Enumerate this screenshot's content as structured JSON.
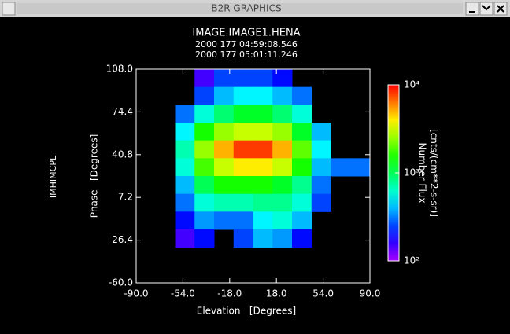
{
  "window": {
    "title": "B2R GRAPHICS"
  },
  "chart_data": {
    "type": "heatmap",
    "title": "IMAGE.IMAGE1.HENA",
    "subtitle": [
      "2000 177 04:59:08.546",
      "2000 177 05:01:11.246"
    ],
    "side_label": "IMHIMCPL",
    "x_label": "Elevation   [Degrees]",
    "y_label": "Phase   [Degrees]",
    "colorbar_title": [
      "Number Flux",
      "[cnts/(cm**2-s-sr)]"
    ],
    "xlim": [
      -90,
      90
    ],
    "ylim": [
      -60,
      108
    ],
    "xticks": [
      {
        "value": -90,
        "label": "-90.0"
      },
      {
        "value": -54,
        "label": "-54.0"
      },
      {
        "value": -18,
        "label": "-18.0"
      },
      {
        "value": 18,
        "label": "18.0"
      },
      {
        "value": 54,
        "label": "54.0"
      },
      {
        "value": 90,
        "label": "90.0"
      }
    ],
    "yticks": [
      {
        "value": -60,
        "label": "-60.0"
      },
      {
        "value": -26.4,
        "label": "-26.4"
      },
      {
        "value": 7.2,
        "label": "7.2"
      },
      {
        "value": 40.8,
        "label": "40.8"
      },
      {
        "value": 74.4,
        "label": "74.4"
      },
      {
        "value": 108,
        "label": "108.0"
      }
    ],
    "x": [
      -82.5,
      -67.5,
      -52.5,
      -37.5,
      -22.5,
      -7.5,
      7.5,
      22.5,
      37.5,
      52.5,
      67.5,
      82.5
    ],
    "y": [
      101,
      87,
      73,
      59,
      45,
      31,
      17,
      3,
      -11,
      -25,
      -39,
      -53
    ],
    "z": [
      [
        null,
        null,
        null,
        150,
        250,
        250,
        250,
        200,
        null,
        null,
        null,
        null
      ],
      [
        null,
        null,
        null,
        250,
        400,
        500,
        500,
        400,
        300,
        null,
        null,
        null
      ],
      [
        null,
        null,
        300,
        600,
        900,
        1200,
        1200,
        900,
        600,
        null,
        null,
        null
      ],
      [
        null,
        null,
        500,
        1500,
        2500,
        3000,
        3000,
        2500,
        1200,
        400,
        null,
        null
      ],
      [
        null,
        null,
        700,
        2500,
        5000,
        8000,
        8000,
        5000,
        2000,
        500,
        null,
        null
      ],
      [
        null,
        null,
        600,
        1800,
        3000,
        4000,
        4000,
        3000,
        1500,
        400,
        300,
        300
      ],
      [
        null,
        null,
        400,
        1000,
        1500,
        1500,
        1500,
        1200,
        800,
        300,
        null,
        null
      ],
      [
        null,
        null,
        300,
        600,
        700,
        700,
        800,
        800,
        600,
        250,
        null,
        null
      ],
      [
        null,
        null,
        200,
        350,
        300,
        300,
        500,
        600,
        400,
        null,
        null,
        null
      ],
      [
        null,
        null,
        150,
        200,
        null,
        250,
        400,
        350,
        200,
        null,
        null,
        null
      ],
      [
        null,
        null,
        null,
        null,
        null,
        null,
        null,
        null,
        null,
        null,
        null,
        null
      ],
      [
        null,
        null,
        null,
        null,
        null,
        null,
        null,
        null,
        null,
        null,
        null,
        null
      ]
    ],
    "zlim": [
      100,
      10000
    ],
    "zlog": true,
    "zticks": [
      {
        "value": 100,
        "label": "10²"
      },
      {
        "value": 1000,
        "label": "10³"
      },
      {
        "value": 10000,
        "label": "10⁴"
      }
    ]
  }
}
